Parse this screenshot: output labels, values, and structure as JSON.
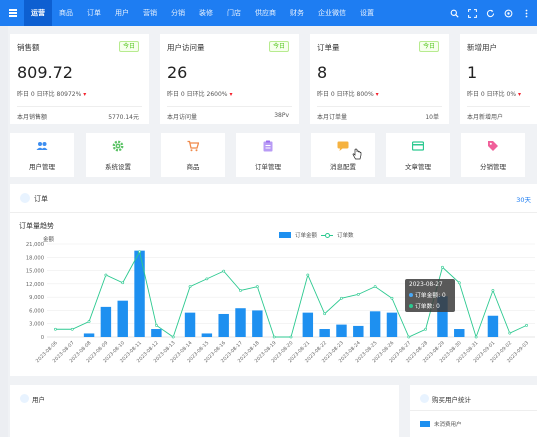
{
  "nav": {
    "items": [
      "运营",
      "商品",
      "订单",
      "用户",
      "营销",
      "分销",
      "装修",
      "门店",
      "供应商",
      "财务",
      "企业微信",
      "设置"
    ],
    "active_index": 0
  },
  "top_icons": [
    "search-icon",
    "fullscreen-icon",
    "refresh-icon",
    "settings-icon",
    "more-icon"
  ],
  "cards": [
    {
      "title": "销售额",
      "badge": "今日",
      "value": "809.72",
      "compare": "昨日 0  日环比 80972%",
      "foot_label": "本月销售额",
      "foot_value": "5770.14元"
    },
    {
      "title": "用户访问量",
      "badge": "今日",
      "value": "26",
      "compare": "昨日 0  日环比 2600%",
      "foot_label": "本月访问量",
      "foot_value": "38Pv"
    },
    {
      "title": "订单量",
      "badge": "今日",
      "value": "8",
      "compare": "昨日 0  日环比 800%",
      "foot_label": "本月订单量",
      "foot_value": "10单"
    },
    {
      "title": "新增用户",
      "badge": "",
      "value": "1",
      "compare": "昨日 0  日环比 0%",
      "foot_label": "本月新增用户",
      "foot_value": ""
    }
  ],
  "quick_links": [
    {
      "label": "用户管理",
      "icon": "users-icon",
      "color": "#3d8ef0"
    },
    {
      "label": "系统设置",
      "icon": "gear-icon",
      "color": "#59c264"
    },
    {
      "label": "商品",
      "icon": "cart-icon",
      "color": "#f08a4b"
    },
    {
      "label": "订单管理",
      "icon": "clipboard-icon",
      "color": "#9b6cf0"
    },
    {
      "label": "消息配置",
      "icon": "message-icon",
      "color": "#f5b240"
    },
    {
      "label": "文章管理",
      "icon": "card-icon",
      "color": "#2cc990"
    },
    {
      "label": "分销管理",
      "icon": "tag-icon",
      "color": "#f0609a"
    }
  ],
  "orders": {
    "title": "订单",
    "range_label": "30天",
    "chart_title": "订单量趋势",
    "y_unit": "金额"
  },
  "tooltip": {
    "date": "2023-08-27",
    "row1": "订单金额: 0",
    "row2": "订单数: 0"
  },
  "panels": {
    "left_title": "用户",
    "right_title": "购买用户统计",
    "right_legend": "未消费用户"
  },
  "chart_data": {
    "type": "bar",
    "title": "订单量趋势",
    "ylabel": "金额",
    "ylim": [
      0,
      21000
    ],
    "yticks": [
      0,
      3000,
      6000,
      9000,
      12000,
      15000,
      18000,
      21000
    ],
    "categories": [
      "2023-08-06",
      "2023-08-07",
      "2023-08-08",
      "2023-08-09",
      "2023-08-10",
      "2023-08-11",
      "2023-08-12",
      "2023-08-13",
      "2023-08-14",
      "2023-08-15",
      "2023-08-16",
      "2023-08-17",
      "2023-08-18",
      "2023-08-19",
      "2023-08-20",
      "2023-08-21",
      "2023-08-22",
      "2023-08-23",
      "2023-08-24",
      "2023-08-25",
      "2023-08-26",
      "2023-08-27",
      "2023-08-28",
      "2023-08-29",
      "2023-08-30",
      "2023-08-31",
      "2023-09-01",
      "2023-09-02",
      "2023-09-03"
    ],
    "legend": [
      "订单金额",
      "订单数"
    ],
    "colors": {
      "bar": "#1e90f0",
      "line": "#2cc990"
    },
    "series": [
      {
        "name": "订单金额",
        "values": [
          0,
          0,
          800,
          6800,
          8200,
          19500,
          1800,
          0,
          5500,
          800,
          5200,
          6500,
          6000,
          0,
          0,
          5500,
          1800,
          2800,
          2500,
          5800,
          5500,
          0,
          0,
          9200,
          1800,
          0,
          4800,
          0,
          0
        ]
      },
      {
        "name": "订单数",
        "values": [
          2,
          2,
          4,
          16,
          14,
          22,
          3,
          0,
          13,
          15,
          17,
          12,
          13,
          0,
          0,
          16,
          6,
          10,
          11,
          13,
          10,
          0,
          2,
          18,
          14,
          0,
          12,
          1,
          3
        ]
      }
    ]
  }
}
